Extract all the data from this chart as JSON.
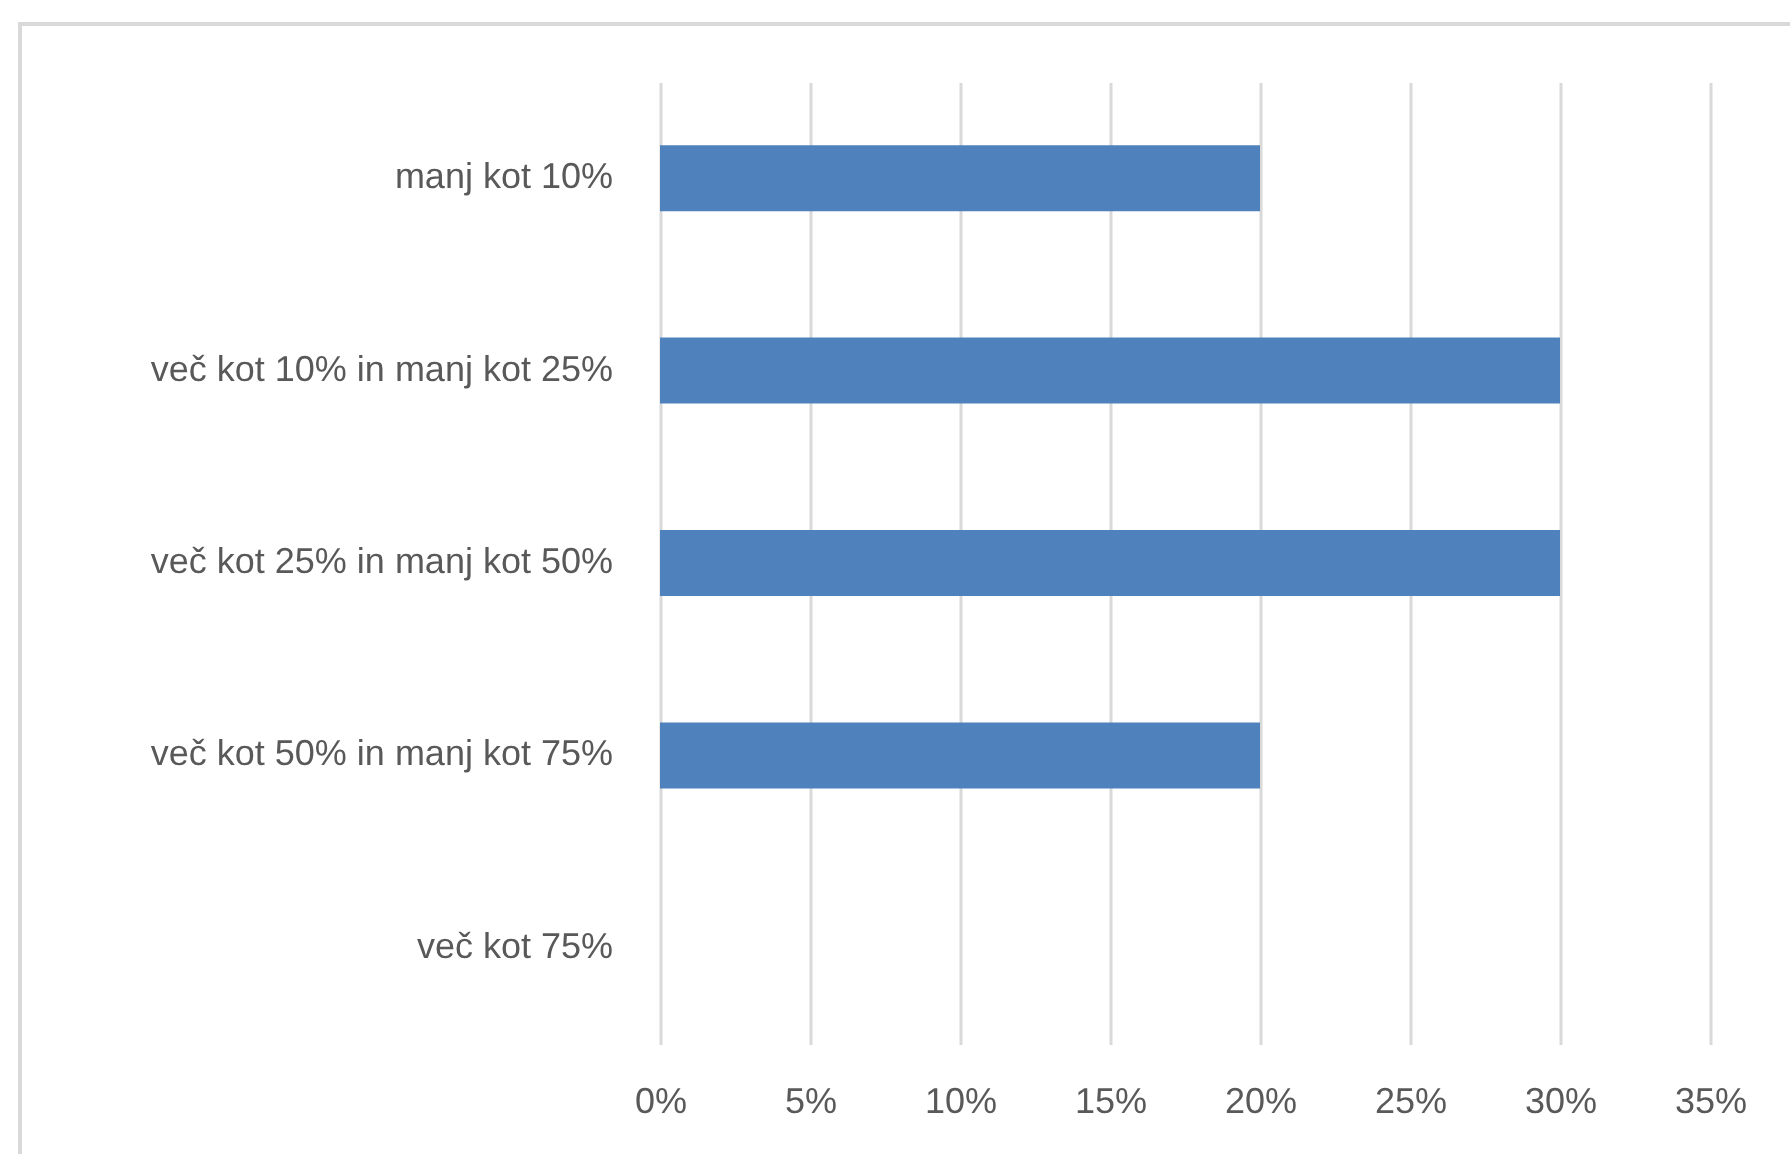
{
  "chart_data": {
    "type": "bar",
    "orientation": "horizontal",
    "categories": [
      "manj kot 10%",
      "več kot 10% in manj kot 25%",
      "več kot 25% in manj kot 50%",
      "več kot 50% in manj kot 75%",
      "več kot 75%"
    ],
    "values": [
      20,
      30,
      30,
      20,
      0
    ],
    "color": "#4f81bd",
    "xlim": [
      0,
      35
    ],
    "xticks": [
      {
        "value": 0,
        "label": "0%"
      },
      {
        "value": 5,
        "label": "5%"
      },
      {
        "value": 10,
        "label": "10%"
      },
      {
        "value": 15,
        "label": "15%"
      },
      {
        "value": 20,
        "label": "20%"
      },
      {
        "value": 25,
        "label": "25%"
      },
      {
        "value": 30,
        "label": "30%"
      },
      {
        "value": 35,
        "label": "35%"
      }
    ],
    "grid": "x"
  }
}
